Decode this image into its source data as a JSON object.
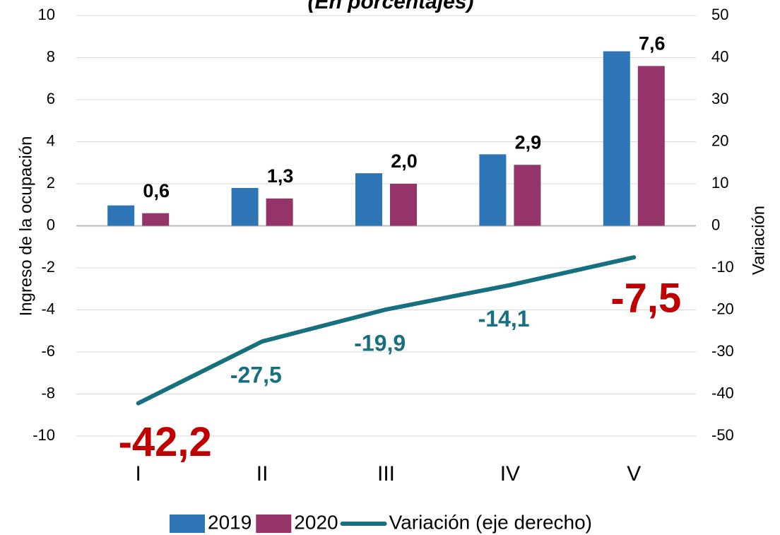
{
  "chart_data": {
    "type": "bar",
    "title": "(En porcentajes)",
    "categories": [
      "I",
      "II",
      "III",
      "IV",
      "V"
    ],
    "series": [
      {
        "name": "2019",
        "color": "#2e75b6",
        "values": [
          0.97,
          1.8,
          2.5,
          3.4,
          8.3
        ]
      },
      {
        "name": "2020",
        "color": "#943469",
        "values": [
          0.6,
          1.3,
          2.0,
          2.9,
          7.6
        ],
        "value_labels": [
          "0,6",
          "1,3",
          "2,0",
          "2,9",
          "7,6"
        ]
      },
      {
        "name": "Variación (eje derecho)",
        "type": "line",
        "axis": "y2",
        "color": "#17707f",
        "values": [
          -42.2,
          -27.5,
          -19.9,
          -14.1,
          -7.5
        ],
        "value_labels": [
          "-42,2",
          "-27,5",
          "-19,9",
          "-14,1",
          "-7,5"
        ]
      }
    ],
    "ylabel": "Ingreso de la ocupación",
    "y2label": "Variación",
    "ylim": [
      -10,
      10
    ],
    "yticks": [
      -10,
      -8,
      -6,
      -4,
      -2,
      0,
      2,
      4,
      6,
      8,
      10
    ],
    "y2lim": [
      -50,
      50
    ],
    "y2ticks": [
      -50,
      -40,
      -30,
      -20,
      -10,
      0,
      10,
      20,
      30,
      40,
      50
    ],
    "grid": true,
    "legend": "bottom"
  }
}
